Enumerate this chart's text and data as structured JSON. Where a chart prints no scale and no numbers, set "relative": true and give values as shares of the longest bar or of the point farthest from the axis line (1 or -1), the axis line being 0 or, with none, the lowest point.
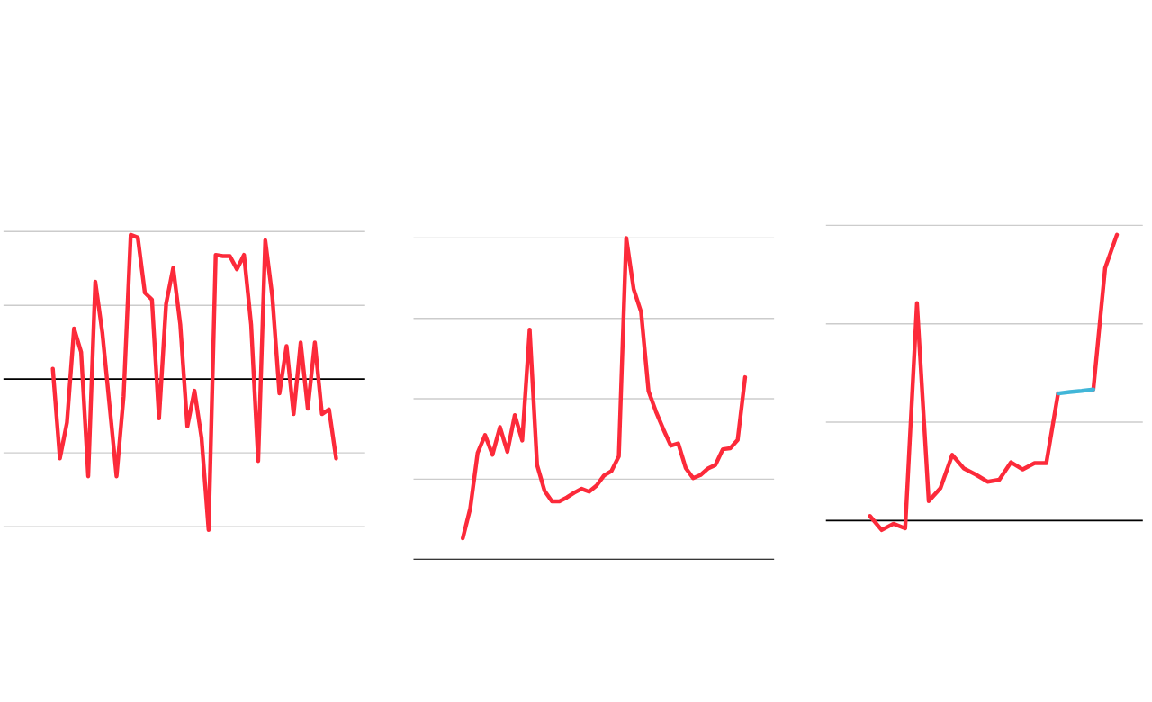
{
  "chart_data": [
    {
      "type": "line",
      "relative": true,
      "grid": "y",
      "marker": "none",
      "line_style": "solid",
      "categories": [
        null,
        null,
        null,
        null,
        null,
        null,
        null,
        null,
        null,
        null,
        null,
        null,
        null,
        null,
        null,
        null,
        null,
        null,
        null,
        null,
        null,
        null,
        null,
        null,
        null,
        null,
        null,
        null,
        null,
        null,
        null,
        null,
        null,
        null,
        null,
        null,
        null,
        null,
        null,
        null,
        null
      ],
      "series": [
        {
          "color": "#fc2a3a",
          "values": [
            0.069,
            -0.525,
            -0.287,
            0.335,
            0.179,
            -0.644,
            0.645,
            0.307,
            -0.168,
            -0.644,
            -0.113,
            0.956,
            0.938,
            0.572,
            0.527,
            -0.26,
            0.499,
            0.737,
            0.362,
            -0.314,
            -0.077,
            -0.388,
            -1,
            0.823,
            0.815,
            0.815,
            0.728,
            0.823,
            0.362,
            -0.543,
            0.92,
            0.545,
            -0.095,
            0.219,
            -0.232,
            0.243,
            -0.196,
            0.243,
            -0.232,
            -0.201,
            -0.525
          ]
        }
      ]
    },
    {
      "type": "line",
      "relative": true,
      "grid": "y",
      "marker": "none",
      "line_style": "solid",
      "categories": [
        null,
        null,
        null,
        null,
        null,
        null,
        null,
        null,
        null,
        null,
        null,
        null,
        null,
        null,
        null,
        null,
        null,
        null,
        null,
        null,
        null,
        null,
        null,
        null,
        null,
        null,
        null,
        null,
        null,
        null,
        null,
        null,
        null,
        null,
        null,
        null,
        null,
        null,
        null
      ],
      "series": [
        {
          "color": "#fc2a3a",
          "values": [
            0.066,
            0.159,
            0.332,
            0.387,
            0.326,
            0.412,
            0.335,
            0.449,
            0.37,
            0.715,
            0.294,
            0.214,
            0.181,
            0.181,
            0.193,
            0.208,
            0.22,
            0.211,
            0.23,
            0.261,
            0.275,
            0.321,
            1,
            0.841,
            0.77,
            0.524,
            0.46,
            0.405,
            0.354,
            0.361,
            0.285,
            0.253,
            0.263,
            0.283,
            0.294,
            0.343,
            0.346,
            0.372,
            0.567
          ]
        }
      ]
    },
    {
      "type": "line",
      "relative": true,
      "grid": "y",
      "marker": "none",
      "line_style": "solid",
      "categories": [
        null,
        null,
        null,
        null,
        null,
        null,
        null,
        null,
        null,
        null,
        null,
        null,
        null,
        null,
        null,
        null,
        null,
        null,
        null,
        null,
        null,
        null
      ],
      "series": [
        {
          "color": "#fc2a3a",
          "values": [
            0.016,
            -0.033,
            -0.011,
            -0.027,
            0.761,
            0.068,
            0.114,
            0.23,
            0.182,
            0.161,
            0.136,
            0.143,
            0.204,
            0.179,
            0.201,
            0.201,
            0.445,
            null,
            null,
            0.459,
            0.884,
            1
          ]
        },
        {
          "color": "#41b6d8",
          "values": [
            null,
            null,
            null,
            null,
            null,
            null,
            null,
            null,
            null,
            null,
            null,
            null,
            null,
            null,
            null,
            null,
            0.445,
            0.45,
            0.454,
            0.459,
            null,
            null
          ]
        }
      ]
    }
  ]
}
